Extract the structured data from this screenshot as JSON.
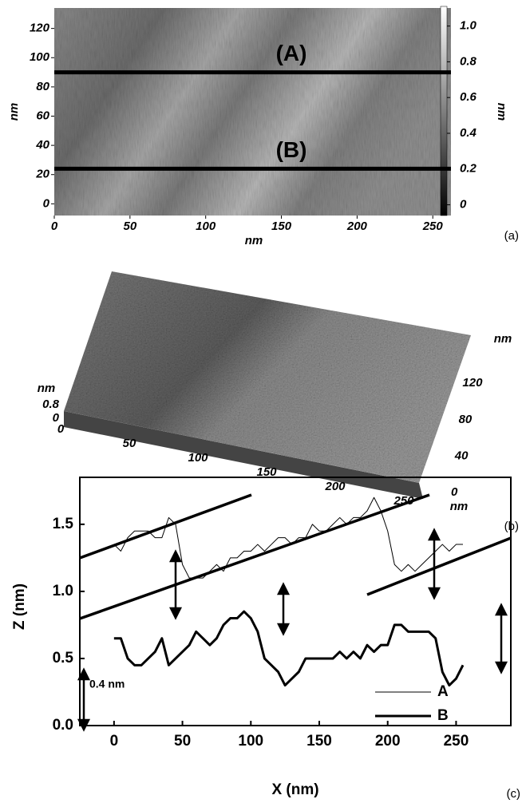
{
  "chart_data": [
    {
      "type": "heatmap",
      "panel": "(a)",
      "x_label": "nm",
      "y_label": "nm",
      "colorbar_label": "nm",
      "xlim": [
        0,
        262
      ],
      "xticks": [
        0,
        50,
        100,
        150,
        200,
        250
      ],
      "ylim": [
        -8,
        134
      ],
      "yticks": [
        0,
        20,
        40,
        60,
        80,
        100,
        120
      ],
      "zlim": [
        -0.06,
        1.11
      ],
      "zticks": [
        0,
        0.2,
        0.4,
        0.6,
        0.8,
        {
          "value": 1,
          "label": "1.0"
        }
      ],
      "profiles": [
        {
          "label": "(A)",
          "y": 90
        },
        {
          "label": "(B)",
          "y": 24
        }
      ]
    },
    {
      "type": "surface",
      "panel": "(b)",
      "x_label": "nm",
      "y_label": "nm",
      "z_label": "nm",
      "xticks": [
        0,
        50,
        100,
        150,
        200,
        250
      ],
      "yticks": [
        0,
        40,
        80,
        120
      ],
      "zticks": [
        0,
        0.8
      ]
    },
    {
      "type": "line",
      "panel": "(c)",
      "x_label": "X (nm)",
      "y_label": "Z (nm)",
      "annotation": "0.4 nm",
      "xlim": [
        -25,
        290
      ],
      "xticks": [
        0,
        50,
        100,
        150,
        200,
        250
      ],
      "ylim": [
        0,
        1.85
      ],
      "yticks": [
        {
          "value": 0,
          "label": "0.0"
        },
        0.5,
        {
          "value": 1,
          "label": "1.0"
        },
        1.5
      ],
      "x": [
        0,
        5,
        10,
        15,
        20,
        25,
        30,
        35,
        40,
        45,
        50,
        55,
        60,
        65,
        70,
        75,
        80,
        85,
        90,
        95,
        100,
        105,
        110,
        115,
        120,
        125,
        130,
        135,
        140,
        145,
        150,
        155,
        160,
        165,
        170,
        175,
        180,
        185,
        190,
        195,
        200,
        205,
        210,
        215,
        220,
        225,
        230,
        235,
        240,
        245,
        250,
        255
      ],
      "series": [
        {
          "name": "A",
          "color": "#000000",
          "width": 1,
          "values": [
            1.35,
            1.3,
            1.4,
            1.45,
            1.45,
            1.45,
            1.4,
            1.4,
            1.55,
            1.5,
            1.2,
            1.1,
            1.1,
            1.1,
            1.15,
            1.2,
            1.15,
            1.25,
            1.25,
            1.3,
            1.3,
            1.35,
            1.3,
            1.35,
            1.4,
            1.4,
            1.35,
            1.4,
            1.4,
            1.5,
            1.45,
            1.45,
            1.5,
            1.55,
            1.5,
            1.55,
            1.55,
            1.6,
            1.7,
            1.6,
            1.45,
            1.2,
            1.15,
            1.2,
            1.15,
            1.2,
            1.25,
            1.3,
            1.35,
            1.3,
            1.35,
            1.35
          ]
        },
        {
          "name": "B",
          "color": "#000000",
          "width": 3,
          "values": [
            0.65,
            0.65,
            0.5,
            0.45,
            0.45,
            0.5,
            0.55,
            0.65,
            0.45,
            0.5,
            0.55,
            0.6,
            0.7,
            0.65,
            0.6,
            0.65,
            0.75,
            0.8,
            0.8,
            0.85,
            0.8,
            0.7,
            0.5,
            0.45,
            0.4,
            0.3,
            0.35,
            0.4,
            0.5,
            0.5,
            0.5,
            0.5,
            0.5,
            0.55,
            0.5,
            0.55,
            0.5,
            0.6,
            0.55,
            0.6,
            0.6,
            0.75,
            0.75,
            0.7,
            0.7,
            0.7,
            0.7,
            0.65,
            0.4,
            0.3,
            0.35,
            0.45
          ]
        }
      ]
    }
  ]
}
